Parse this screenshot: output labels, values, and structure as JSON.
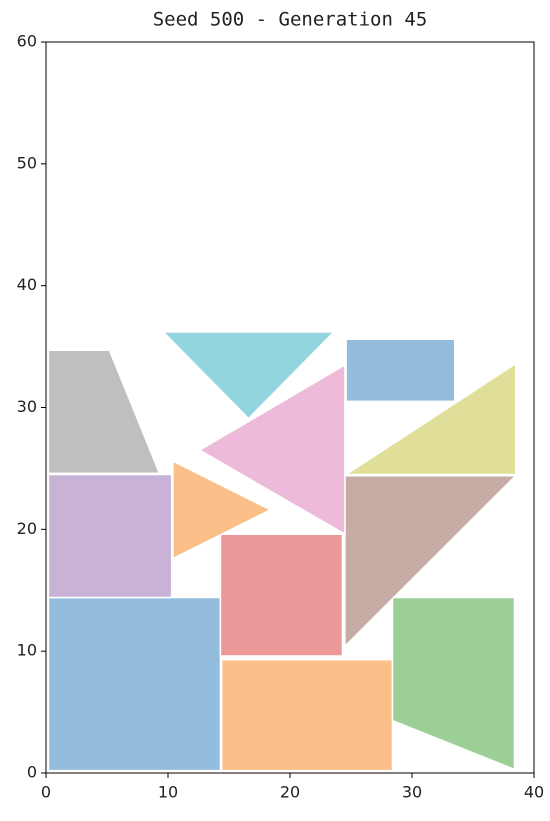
{
  "chart_data": {
    "type": "polygon",
    "title": "Seed 500 - Generation 45",
    "xlim": [
      0,
      40
    ],
    "ylim": [
      0,
      60
    ],
    "xticks": [
      0,
      10,
      20,
      30,
      40
    ],
    "yticks": [
      0,
      10,
      20,
      30,
      40,
      50,
      60
    ],
    "grid": false,
    "series": [
      {
        "color": "#94bcdc",
        "x": [
          0.2,
          14.3,
          14.3,
          0.2
        ],
        "y": [
          0.2,
          0.2,
          14.4,
          14.4
        ]
      },
      {
        "color": "#fbbf8a",
        "x": [
          14.4,
          28.4,
          28.4,
          14.4
        ],
        "y": [
          0.2,
          0.2,
          9.3,
          9.3
        ]
      },
      {
        "color": "#9ccf95",
        "x": [
          28.4,
          38.4,
          38.4,
          28.4
        ],
        "y": [
          14.4,
          14.4,
          0.3,
          4.3
        ]
      },
      {
        "color": "#eb9898",
        "x": [
          14.3,
          24.3,
          24.3,
          14.3
        ],
        "y": [
          9.6,
          9.6,
          19.6,
          19.6
        ]
      },
      {
        "color": "#c7aca6",
        "x": [
          24.5,
          38.5,
          24.5
        ],
        "y": [
          24.4,
          24.4,
          10.4
        ]
      },
      {
        "color": "#c8b2d6",
        "x": [
          0.2,
          10.3,
          10.3,
          0.2
        ],
        "y": [
          14.4,
          14.4,
          24.5,
          24.5
        ]
      },
      {
        "color": "#bfbfbf",
        "x": [
          0.2,
          5.2,
          9.3,
          0.2
        ],
        "y": [
          34.7,
          34.7,
          24.6,
          24.6
        ]
      },
      {
        "color": "#fbbf8a",
        "x": [
          10.4,
          18.4,
          10.4
        ],
        "y": [
          25.6,
          21.6,
          17.6
        ]
      },
      {
        "color": "#edbbd9",
        "x": [
          24.5,
          12.6,
          24.5
        ],
        "y": [
          33.5,
          26.5,
          19.6
        ]
      },
      {
        "color": "#92d5de",
        "x": [
          9.6,
          23.6,
          16.6
        ],
        "y": [
          36.2,
          36.2,
          29.1
        ]
      },
      {
        "color": "#94bcdc",
        "x": [
          24.6,
          33.5,
          33.5,
          24.6
        ],
        "y": [
          30.5,
          30.5,
          35.6,
          35.6
        ]
      },
      {
        "color": "#dfdf99",
        "x": [
          24.6,
          38.5,
          38.5
        ],
        "y": [
          24.5,
          24.5,
          33.6
        ]
      }
    ]
  }
}
